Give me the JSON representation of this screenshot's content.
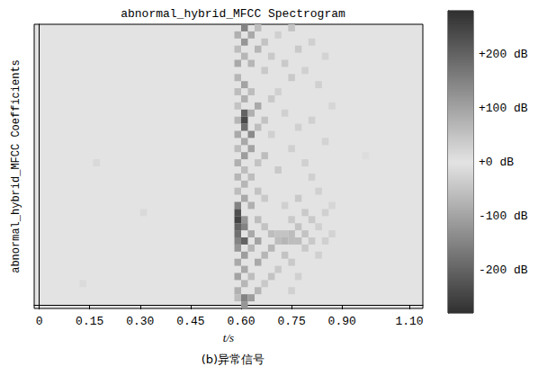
{
  "chart_data": {
    "type": "heatmap",
    "title": "abnormal_hybrid_MFCC Spectrogram",
    "caption": "(b)异常信号",
    "x_label": "t/s",
    "y_label": "abnormal_hybrid_MFCC Coefficients",
    "xlim": [
      -0.015,
      1.14
    ],
    "xticks": [
      0,
      0.15,
      {
        "value": 0.3,
        "label": "0.30"
      },
      0.45,
      {
        "value": 0.6,
        "label": "0.60"
      },
      0.75,
      {
        "value": 0.9,
        "label": "0.90"
      },
      {
        "value": 1.1,
        "label": "1.10"
      }
    ],
    "ylim": [
      -0.5,
      39.5
    ],
    "tick_labels": "x",
    "cells": [
      [
        0.13,
        3,
        12
      ],
      [
        0.17,
        20,
        15
      ],
      [
        0.31,
        13,
        15
      ],
      [
        0.97,
        21,
        10
      ],
      [
        0.59,
        38,
        80
      ],
      [
        0.59,
        36,
        -60
      ],
      [
        0.59,
        34,
        90
      ],
      [
        0.59,
        32,
        -70
      ],
      [
        0.59,
        30,
        60
      ],
      [
        0.59,
        28,
        -50
      ],
      [
        0.59,
        26,
        70
      ],
      [
        0.59,
        24,
        -90
      ],
      [
        0.59,
        22,
        60
      ],
      [
        0.59,
        20,
        -80
      ],
      [
        0.59,
        18,
        70
      ],
      [
        0.59,
        16,
        -60
      ],
      [
        0.59,
        14,
        150
      ],
      [
        0.59,
        13,
        -230
      ],
      [
        0.59,
        12,
        250
      ],
      [
        0.59,
        11,
        -200
      ],
      [
        0.59,
        10,
        180
      ],
      [
        0.59,
        9,
        -150
      ],
      [
        0.59,
        8,
        120
      ],
      [
        0.59,
        6,
        -90
      ],
      [
        0.59,
        4,
        100
      ],
      [
        0.59,
        2,
        -80
      ],
      [
        0.59,
        1,
        60
      ],
      [
        0.61,
        39,
        150
      ],
      [
        0.61,
        37,
        -120
      ],
      [
        0.61,
        35,
        70
      ],
      [
        0.61,
        31,
        -100
      ],
      [
        0.61,
        29,
        80
      ],
      [
        0.61,
        27,
        -200
      ],
      [
        0.61,
        26,
        240
      ],
      [
        0.61,
        25,
        -180
      ],
      [
        0.61,
        23,
        90
      ],
      [
        0.61,
        21,
        -110
      ],
      [
        0.61,
        19,
        60
      ],
      [
        0.61,
        17,
        -70
      ],
      [
        0.61,
        15,
        90
      ],
      [
        0.61,
        12,
        -120
      ],
      [
        0.61,
        11,
        150
      ],
      [
        0.61,
        9,
        -200
      ],
      [
        0.61,
        7,
        110
      ],
      [
        0.61,
        5,
        -90
      ],
      [
        0.61,
        3,
        70
      ],
      [
        0.61,
        1,
        -150
      ],
      [
        0.61,
        0,
        120
      ],
      [
        0.63,
        38,
        -90
      ],
      [
        0.63,
        34,
        70
      ],
      [
        0.63,
        30,
        -60
      ],
      [
        0.63,
        27,
        80
      ],
      [
        0.63,
        24,
        -140
      ],
      [
        0.63,
        22,
        100
      ],
      [
        0.63,
        18,
        -60
      ],
      [
        0.63,
        14,
        80
      ],
      [
        0.63,
        10,
        -90
      ],
      [
        0.63,
        8,
        70
      ],
      [
        0.63,
        4,
        -60
      ],
      [
        0.63,
        1,
        110
      ],
      [
        0.65,
        39,
        60
      ],
      [
        0.65,
        36,
        -70
      ],
      [
        0.65,
        28,
        90
      ],
      [
        0.65,
        25,
        -60
      ],
      [
        0.65,
        20,
        50
      ],
      [
        0.65,
        16,
        -50
      ],
      [
        0.65,
        12,
        60
      ],
      [
        0.65,
        9,
        -100
      ],
      [
        0.65,
        6,
        90
      ],
      [
        0.65,
        2,
        -70
      ],
      [
        0.67,
        37,
        50
      ],
      [
        0.67,
        33,
        -40
      ],
      [
        0.67,
        26,
        50
      ],
      [
        0.67,
        21,
        -60
      ],
      [
        0.67,
        15,
        40
      ],
      [
        0.67,
        11,
        -50
      ],
      [
        0.67,
        7,
        70
      ],
      [
        0.67,
        3,
        -40
      ],
      [
        0.69,
        35,
        -40
      ],
      [
        0.69,
        29,
        40
      ],
      [
        0.69,
        24,
        -30
      ],
      [
        0.69,
        10,
        60
      ],
      [
        0.69,
        8,
        -70
      ],
      [
        0.69,
        4,
        50
      ],
      [
        0.71,
        38,
        30
      ],
      [
        0.71,
        30,
        -30
      ],
      [
        0.71,
        19,
        40
      ],
      [
        0.71,
        10,
        -50
      ],
      [
        0.71,
        9,
        60
      ],
      [
        0.71,
        5,
        -40
      ],
      [
        0.73,
        34,
        40
      ],
      [
        0.73,
        27,
        -30
      ],
      [
        0.73,
        14,
        30
      ],
      [
        0.73,
        10,
        50
      ],
      [
        0.73,
        9,
        -70
      ],
      [
        0.73,
        7,
        50
      ],
      [
        0.75,
        39,
        50
      ],
      [
        0.75,
        32,
        -40
      ],
      [
        0.75,
        22,
        30
      ],
      [
        0.75,
        12,
        -40
      ],
      [
        0.75,
        10,
        60
      ],
      [
        0.75,
        9,
        -60
      ],
      [
        0.75,
        6,
        40
      ],
      [
        0.75,
        2,
        -30
      ],
      [
        0.77,
        36,
        40
      ],
      [
        0.77,
        25,
        -30
      ],
      [
        0.77,
        15,
        40
      ],
      [
        0.77,
        11,
        -50
      ],
      [
        0.77,
        9,
        60
      ],
      [
        0.77,
        4,
        -30
      ],
      [
        0.79,
        33,
        -30
      ],
      [
        0.79,
        20,
        30
      ],
      [
        0.79,
        13,
        -40
      ],
      [
        0.79,
        10,
        50
      ],
      [
        0.79,
        8,
        -40
      ],
      [
        0.81,
        37,
        30
      ],
      [
        0.81,
        26,
        -30
      ],
      [
        0.81,
        18,
        -30
      ],
      [
        0.81,
        12,
        40
      ],
      [
        0.81,
        9,
        -40
      ],
      [
        0.83,
        31,
        30
      ],
      [
        0.83,
        16,
        -30
      ],
      [
        0.83,
        11,
        30
      ],
      [
        0.83,
        7,
        -30
      ],
      [
        0.85,
        35,
        -25
      ],
      [
        0.85,
        23,
        25
      ],
      [
        0.85,
        13,
        -30
      ],
      [
        0.85,
        9,
        30
      ],
      [
        0.87,
        28,
        20
      ],
      [
        0.87,
        14,
        -20
      ],
      [
        0.87,
        10,
        25
      ]
    ],
    "colorbar": {
      "range": [
        -280,
        280
      ],
      "ticks": [
        {
          "value": 200,
          "label": "+200 dB"
        },
        {
          "value": 100,
          "label": "+100 dB"
        },
        {
          "value": 0,
          "label": "+0 dB"
        },
        {
          "value": -100,
          "label": "-100 dB"
        },
        {
          "value": -200,
          "label": "-200 dB"
        }
      ]
    }
  }
}
